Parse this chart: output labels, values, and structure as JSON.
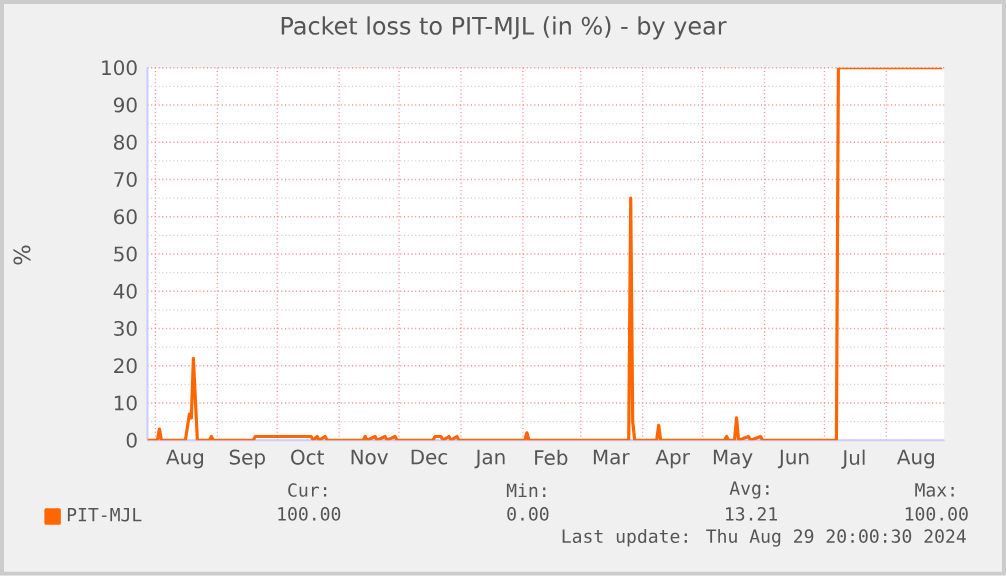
{
  "chart_data": {
    "type": "line",
    "title": "Packet loss to PIT-MJL (in %) - by year",
    "ylabel": "%",
    "x": [
      "2023-07-28",
      "2023-08-02",
      "2023-08-03",
      "2023-08-04",
      "2023-08-16",
      "2023-08-18",
      "2023-08-19",
      "2023-08-20",
      "2023-08-22",
      "2023-08-28",
      "2023-08-29",
      "2023-08-30",
      "2023-09-19",
      "2023-09-20",
      "2023-10-18",
      "2023-10-19",
      "2023-10-21",
      "2023-10-22",
      "2023-10-25",
      "2023-10-26",
      "2023-11-13",
      "2023-11-14",
      "2023-11-15",
      "2023-11-19",
      "2023-11-20",
      "2023-11-24",
      "2023-11-25",
      "2023-11-29",
      "2023-11-30",
      "2023-12-18",
      "2023-12-19",
      "2023-12-22",
      "2023-12-23",
      "2023-12-26",
      "2023-12-27",
      "2023-12-30",
      "2023-12-31",
      "2024-02-02",
      "2024-02-03",
      "2024-02-04",
      "2024-03-25",
      "2024-03-26",
      "2024-03-27",
      "2024-03-28",
      "2024-04-08",
      "2024-04-09",
      "2024-04-10",
      "2024-05-12",
      "2024-05-13",
      "2024-05-14",
      "2024-05-17",
      "2024-05-18",
      "2024-05-19",
      "2024-05-24",
      "2024-05-25",
      "2024-05-30",
      "2024-05-31",
      "2024-07-07",
      "2024-07-08",
      "2024-08-29"
    ],
    "series": [
      {
        "name": "PIT-MJL",
        "color": "#ff6600",
        "values": [
          0,
          0,
          3,
          0,
          0,
          7,
          6,
          22,
          0,
          0,
          1,
          0,
          0,
          1,
          1,
          0,
          1,
          0,
          1,
          0,
          0,
          1,
          0,
          1,
          0,
          1,
          0,
          1,
          0,
          0,
          1,
          1,
          0,
          1,
          0,
          1,
          0,
          0,
          2,
          0,
          0,
          65,
          5,
          0,
          0,
          4,
          0,
          0,
          1,
          0,
          0,
          6,
          0,
          1,
          0,
          1,
          0,
          0,
          100,
          100
        ]
      }
    ],
    "xlim": [
      "2023-07-28",
      "2024-08-30"
    ],
    "xticks": [
      {
        "value": "2023-08-01",
        "label": null
      },
      {
        "value": "2023-08-16",
        "label": "Aug"
      },
      {
        "value": "2023-09-01",
        "label": null
      },
      {
        "value": "2023-09-16",
        "label": "Sep"
      },
      {
        "value": "2023-10-01",
        "label": null
      },
      {
        "value": "2023-10-16",
        "label": "Oct"
      },
      {
        "value": "2023-11-01",
        "label": null
      },
      {
        "value": "2023-11-16",
        "label": "Nov"
      },
      {
        "value": "2023-12-01",
        "label": null
      },
      {
        "value": "2023-12-16",
        "label": "Dec"
      },
      {
        "value": "2024-01-01",
        "label": null
      },
      {
        "value": "2024-01-16",
        "label": "Jan"
      },
      {
        "value": "2024-02-01",
        "label": null
      },
      {
        "value": "2024-02-15",
        "label": "Feb"
      },
      {
        "value": "2024-03-01",
        "label": null
      },
      {
        "value": "2024-03-16",
        "label": "Mar"
      },
      {
        "value": "2024-04-01",
        "label": null
      },
      {
        "value": "2024-04-16",
        "label": "Apr"
      },
      {
        "value": "2024-05-01",
        "label": null
      },
      {
        "value": "2024-05-16",
        "label": "May"
      },
      {
        "value": "2024-06-01",
        "label": null
      },
      {
        "value": "2024-06-16",
        "label": "Jun"
      },
      {
        "value": "2024-07-01",
        "label": null
      },
      {
        "value": "2024-07-16",
        "label": "Jul"
      },
      {
        "value": "2024-08-01",
        "label": null
      },
      {
        "value": "2024-08-16",
        "label": "Aug"
      }
    ],
    "ylim": [
      0,
      100
    ],
    "yticks": [
      0,
      10,
      20,
      30,
      40,
      50,
      60,
      70,
      80,
      90,
      100
    ],
    "grid": true,
    "legend": "bottom left",
    "marker": "none",
    "line_style": "solid",
    "annotations": [
      "Cur:",
      "Min:",
      "Avg:",
      "Max:",
      "100.00",
      "0.00",
      "13.21",
      "100.00",
      "Last update: Thu Aug 29 20:00:30 2024"
    ]
  }
}
